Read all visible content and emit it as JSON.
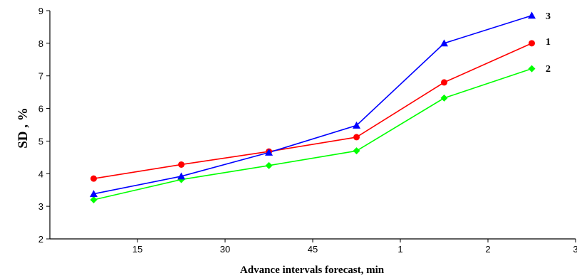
{
  "chart_data": {
    "type": "line",
    "xlabel": "Advance intervals forecast, min",
    "ylabel": "SD , %",
    "x_ticks": [
      "15",
      "30",
      "45",
      "1",
      "2",
      "3"
    ],
    "y_ticks": [
      "2",
      "3",
      "4",
      "5",
      "6",
      "7",
      "8",
      "9"
    ],
    "ylim": [
      2,
      9
    ],
    "grid": false,
    "legend": "labels at line ends",
    "categories": [
      "7.5",
      "22.5",
      "37.5",
      "52.5",
      "1.5",
      "2.5"
    ],
    "series": [
      {
        "name": "1",
        "color": "#ff0000",
        "marker": "circle",
        "values": [
          3.85,
          4.28,
          4.68,
          5.12,
          6.8,
          8.0
        ]
      },
      {
        "name": "2",
        "color": "#00ff00",
        "marker": "diamond",
        "values": [
          3.2,
          3.82,
          4.25,
          4.7,
          6.32,
          7.22
        ]
      },
      {
        "name": "3",
        "color": "#0000ff",
        "marker": "triangle",
        "values": [
          3.38,
          3.92,
          4.65,
          5.48,
          8.0,
          8.85
        ]
      }
    ]
  }
}
